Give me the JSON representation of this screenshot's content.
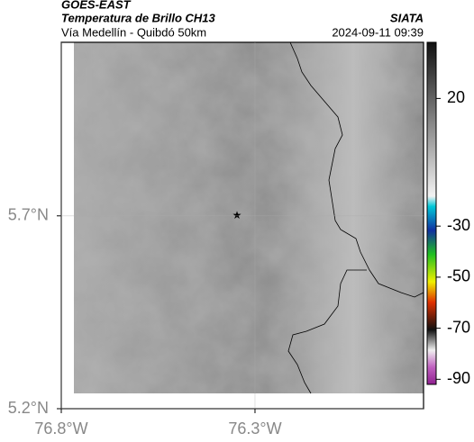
{
  "header": {
    "source": "GOES-EAST",
    "title": "Temperatura de Brillo CH13",
    "subtitle": "Vía Medellín - Quibdó 50km",
    "credit": "SIATA",
    "timestamp": "2024-09-11 09:39"
  },
  "map": {
    "xlim": [
      -76.8,
      -75.865
    ],
    "ylim": [
      5.2,
      6.15
    ],
    "yticks": [
      {
        "value": 5.7,
        "label": "5.7°N"
      },
      {
        "value": 5.2,
        "label": "5.2°N"
      }
    ],
    "xticks": [
      {
        "value": -76.8,
        "label": "76.8°W"
      },
      {
        "value": -76.3,
        "label": "76.3°W"
      }
    ]
  },
  "colorbar": {
    "lim": [
      -92,
      42
    ],
    "ticks": [
      20,
      -30,
      -50,
      -70,
      -90
    ]
  }
}
